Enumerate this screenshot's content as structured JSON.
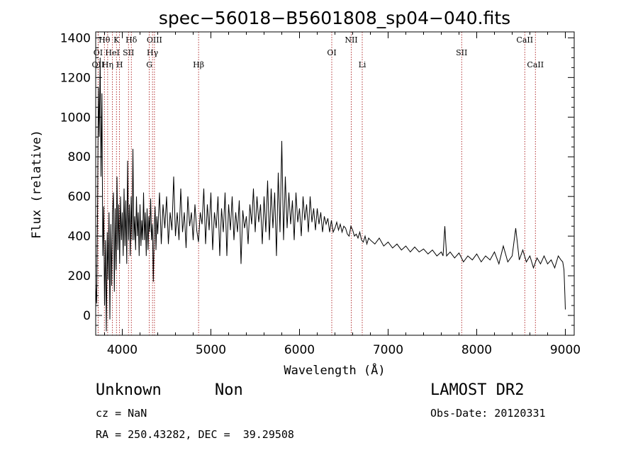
{
  "chart_data": {
    "type": "line",
    "title": "spec−56018−B5601808_sp04−040.fits",
    "xlabel": "Wavelength (Å)",
    "ylabel": "Flux (relative)",
    "xlim": [
      3700,
      9100
    ],
    "ylim": [
      -100,
      1430
    ],
    "xticks": [
      4000,
      5000,
      6000,
      7000,
      8000,
      9000
    ],
    "yticks": [
      0,
      200,
      400,
      600,
      800,
      1000,
      1200,
      1400
    ],
    "grid": false,
    "series": [
      {
        "values": [
          [
            3700,
            150
          ],
          [
            3710,
            60
          ],
          [
            3720,
            500
          ],
          [
            3730,
            1150
          ],
          [
            3740,
            900
          ],
          [
            3750,
            1300
          ],
          [
            3760,
            700
          ],
          [
            3770,
            1120
          ],
          [
            3780,
            300
          ],
          [
            3790,
            550
          ],
          [
            3800,
            50
          ],
          [
            3810,
            380
          ],
          [
            3820,
            -80
          ],
          [
            3830,
            420
          ],
          [
            3840,
            180
          ],
          [
            3850,
            520
          ],
          [
            3860,
            -20
          ],
          [
            3870,
            460
          ],
          [
            3880,
            150
          ],
          [
            3890,
            520
          ],
          [
            3900,
            620
          ],
          [
            3910,
            120
          ],
          [
            3920,
            540
          ],
          [
            3930,
            230
          ],
          [
            3940,
            700
          ],
          [
            3950,
            330
          ],
          [
            3960,
            560
          ],
          [
            3970,
            260
          ],
          [
            3980,
            600
          ],
          [
            3990,
            380
          ],
          [
            4000,
            520
          ],
          [
            4010,
            300
          ],
          [
            4020,
            640
          ],
          [
            4030,
            350
          ],
          [
            4040,
            580
          ],
          [
            4050,
            260
          ],
          [
            4060,
            780
          ],
          [
            4070,
            380
          ],
          [
            4080,
            560
          ],
          [
            4090,
            300
          ],
          [
            4100,
            600
          ],
          [
            4110,
            380
          ],
          [
            4120,
            840
          ],
          [
            4130,
            380
          ],
          [
            4140,
            500
          ],
          [
            4150,
            330
          ],
          [
            4160,
            600
          ],
          [
            4170,
            400
          ],
          [
            4180,
            520
          ],
          [
            4190,
            300
          ],
          [
            4200,
            560
          ],
          [
            4210,
            350
          ],
          [
            4220,
            480
          ],
          [
            4230,
            380
          ],
          [
            4240,
            620
          ],
          [
            4250,
            380
          ],
          [
            4260,
            520
          ],
          [
            4270,
            300
          ],
          [
            4280,
            540
          ],
          [
            4290,
            330
          ],
          [
            4300,
            500
          ],
          [
            4310,
            420
          ],
          [
            4320,
            590
          ],
          [
            4330,
            380
          ],
          [
            4340,
            460
          ],
          [
            4350,
            170
          ],
          [
            4360,
            420
          ],
          [
            4370,
            550
          ],
          [
            4380,
            330
          ],
          [
            4390,
            500
          ],
          [
            4400,
            410
          ],
          [
            4420,
            620
          ],
          [
            4440,
            360
          ],
          [
            4460,
            560
          ],
          [
            4480,
            440
          ],
          [
            4500,
            600
          ],
          [
            4520,
            360
          ],
          [
            4540,
            520
          ],
          [
            4560,
            430
          ],
          [
            4580,
            700
          ],
          [
            4600,
            400
          ],
          [
            4620,
            520
          ],
          [
            4640,
            380
          ],
          [
            4660,
            640
          ],
          [
            4680,
            420
          ],
          [
            4700,
            520
          ],
          [
            4720,
            340
          ],
          [
            4740,
            600
          ],
          [
            4760,
            450
          ],
          [
            4780,
            520
          ],
          [
            4800,
            380
          ],
          [
            4820,
            560
          ],
          [
            4840,
            430
          ],
          [
            4860,
            370
          ],
          [
            4880,
            520
          ],
          [
            4900,
            460
          ],
          [
            4920,
            640
          ],
          [
            4940,
            360
          ],
          [
            4960,
            560
          ],
          [
            4980,
            430
          ],
          [
            5000,
            620
          ],
          [
            5020,
            330
          ],
          [
            5040,
            520
          ],
          [
            5060,
            440
          ],
          [
            5080,
            600
          ],
          [
            5100,
            300
          ],
          [
            5120,
            540
          ],
          [
            5140,
            420
          ],
          [
            5160,
            620
          ],
          [
            5180,
            300
          ],
          [
            5200,
            560
          ],
          [
            5220,
            430
          ],
          [
            5240,
            600
          ],
          [
            5260,
            380
          ],
          [
            5280,
            520
          ],
          [
            5300,
            420
          ],
          [
            5320,
            580
          ],
          [
            5340,
            260
          ],
          [
            5360,
            530
          ],
          [
            5380,
            440
          ],
          [
            5400,
            500
          ],
          [
            5420,
            360
          ],
          [
            5440,
            560
          ],
          [
            5460,
            460
          ],
          [
            5480,
            640
          ],
          [
            5500,
            420
          ],
          [
            5520,
            600
          ],
          [
            5540,
            470
          ],
          [
            5560,
            560
          ],
          [
            5580,
            360
          ],
          [
            5600,
            600
          ],
          [
            5620,
            420
          ],
          [
            5640,
            680
          ],
          [
            5660,
            380
          ],
          [
            5680,
            640
          ],
          [
            5700,
            440
          ],
          [
            5720,
            620
          ],
          [
            5740,
            300
          ],
          [
            5760,
            720
          ],
          [
            5780,
            420
          ],
          [
            5800,
            880
          ],
          [
            5820,
            380
          ],
          [
            5840,
            700
          ],
          [
            5860,
            440
          ],
          [
            5880,
            620
          ],
          [
            5900,
            460
          ],
          [
            5920,
            580
          ],
          [
            5940,
            380
          ],
          [
            5960,
            620
          ],
          [
            5980,
            470
          ],
          [
            6000,
            540
          ],
          [
            6020,
            400
          ],
          [
            6040,
            600
          ],
          [
            6060,
            480
          ],
          [
            6080,
            560
          ],
          [
            6100,
            420
          ],
          [
            6120,
            600
          ],
          [
            6140,
            470
          ],
          [
            6160,
            540
          ],
          [
            6180,
            430
          ],
          [
            6200,
            540
          ],
          [
            6220,
            460
          ],
          [
            6240,
            520
          ],
          [
            6260,
            420
          ],
          [
            6280,
            500
          ],
          [
            6300,
            460
          ],
          [
            6320,
            490
          ],
          [
            6340,
            420
          ],
          [
            6360,
            480
          ],
          [
            6380,
            420
          ],
          [
            6400,
            440
          ],
          [
            6420,
            470
          ],
          [
            6440,
            430
          ],
          [
            6460,
            460
          ],
          [
            6480,
            420
          ],
          [
            6500,
            450
          ],
          [
            6520,
            440
          ],
          [
            6540,
            410
          ],
          [
            6560,
            400
          ],
          [
            6580,
            450
          ],
          [
            6600,
            430
          ],
          [
            6620,
            400
          ],
          [
            6640,
            410
          ],
          [
            6660,
            390
          ],
          [
            6680,
            420
          ],
          [
            6700,
            380
          ],
          [
            6720,
            370
          ],
          [
            6740,
            400
          ],
          [
            6760,
            360
          ],
          [
            6780,
            390
          ],
          [
            6800,
            380
          ],
          [
            6850,
            360
          ],
          [
            6900,
            390
          ],
          [
            6950,
            350
          ],
          [
            7000,
            370
          ],
          [
            7050,
            340
          ],
          [
            7100,
            360
          ],
          [
            7150,
            330
          ],
          [
            7200,
            350
          ],
          [
            7250,
            320
          ],
          [
            7300,
            345
          ],
          [
            7350,
            320
          ],
          [
            7400,
            335
          ],
          [
            7450,
            310
          ],
          [
            7500,
            330
          ],
          [
            7550,
            300
          ],
          [
            7600,
            320
          ],
          [
            7620,
            300
          ],
          [
            7640,
            450
          ],
          [
            7660,
            300
          ],
          [
            7700,
            320
          ],
          [
            7750,
            290
          ],
          [
            7800,
            315
          ],
          [
            7850,
            270
          ],
          [
            7900,
            300
          ],
          [
            7950,
            280
          ],
          [
            8000,
            310
          ],
          [
            8050,
            270
          ],
          [
            8100,
            300
          ],
          [
            8150,
            280
          ],
          [
            8200,
            320
          ],
          [
            8250,
            260
          ],
          [
            8300,
            350
          ],
          [
            8350,
            270
          ],
          [
            8400,
            300
          ],
          [
            8440,
            440
          ],
          [
            8480,
            280
          ],
          [
            8520,
            330
          ],
          [
            8560,
            270
          ],
          [
            8600,
            300
          ],
          [
            8640,
            240
          ],
          [
            8680,
            290
          ],
          [
            8720,
            260
          ],
          [
            8760,
            300
          ],
          [
            8800,
            260
          ],
          [
            8840,
            280
          ],
          [
            8880,
            240
          ],
          [
            8920,
            300
          ],
          [
            8950,
            280
          ],
          [
            8970,
            270
          ],
          [
            8985,
            230
          ],
          [
            8995,
            100
          ],
          [
            9000,
            30
          ]
        ]
      }
    ],
    "line_markers": [
      {
        "label": "Hθ",
        "x": 3798,
        "row": 0
      },
      {
        "label": "K",
        "x": 3934,
        "row": 0
      },
      {
        "label": "Hδ",
        "x": 4102,
        "row": 0
      },
      {
        "label": "OIII",
        "x": 4363,
        "row": 0
      },
      {
        "label": "NII",
        "x": 6584,
        "row": 0
      },
      {
        "label": "CaII",
        "x": 8542,
        "row": 0
      },
      {
        "label": "OI",
        "x": 3727,
        "row": 1
      },
      {
        "label": "HeI",
        "x": 3889,
        "row": 1
      },
      {
        "label": "SII",
        "x": 4070,
        "row": 1
      },
      {
        "label": "Hγ",
        "x": 4341,
        "row": 1
      },
      {
        "label": "OI",
        "x": 6364,
        "row": 1
      },
      {
        "label": "SII",
        "x": 7830,
        "row": 1
      },
      {
        "label": "OII",
        "x": 3727,
        "row": 2
      },
      {
        "label": "Hη",
        "x": 3835,
        "row": 2
      },
      {
        "label": "H",
        "x": 3969,
        "row": 2
      },
      {
        "label": "G",
        "x": 4305,
        "row": 2
      },
      {
        "label": "Hβ",
        "x": 4861,
        "row": 2
      },
      {
        "label": "Li",
        "x": 6708,
        "row": 2
      },
      {
        "label": "CaII",
        "x": 8662,
        "row": 2
      }
    ]
  },
  "info": {
    "class": "Unknown",
    "subclass": "Non",
    "survey": "LAMOST DR2",
    "cz": "cz = NaN",
    "obs_date": "Obs-Date: 20120331",
    "coords": "RA = 250.43282, DEC =  39.29508"
  }
}
